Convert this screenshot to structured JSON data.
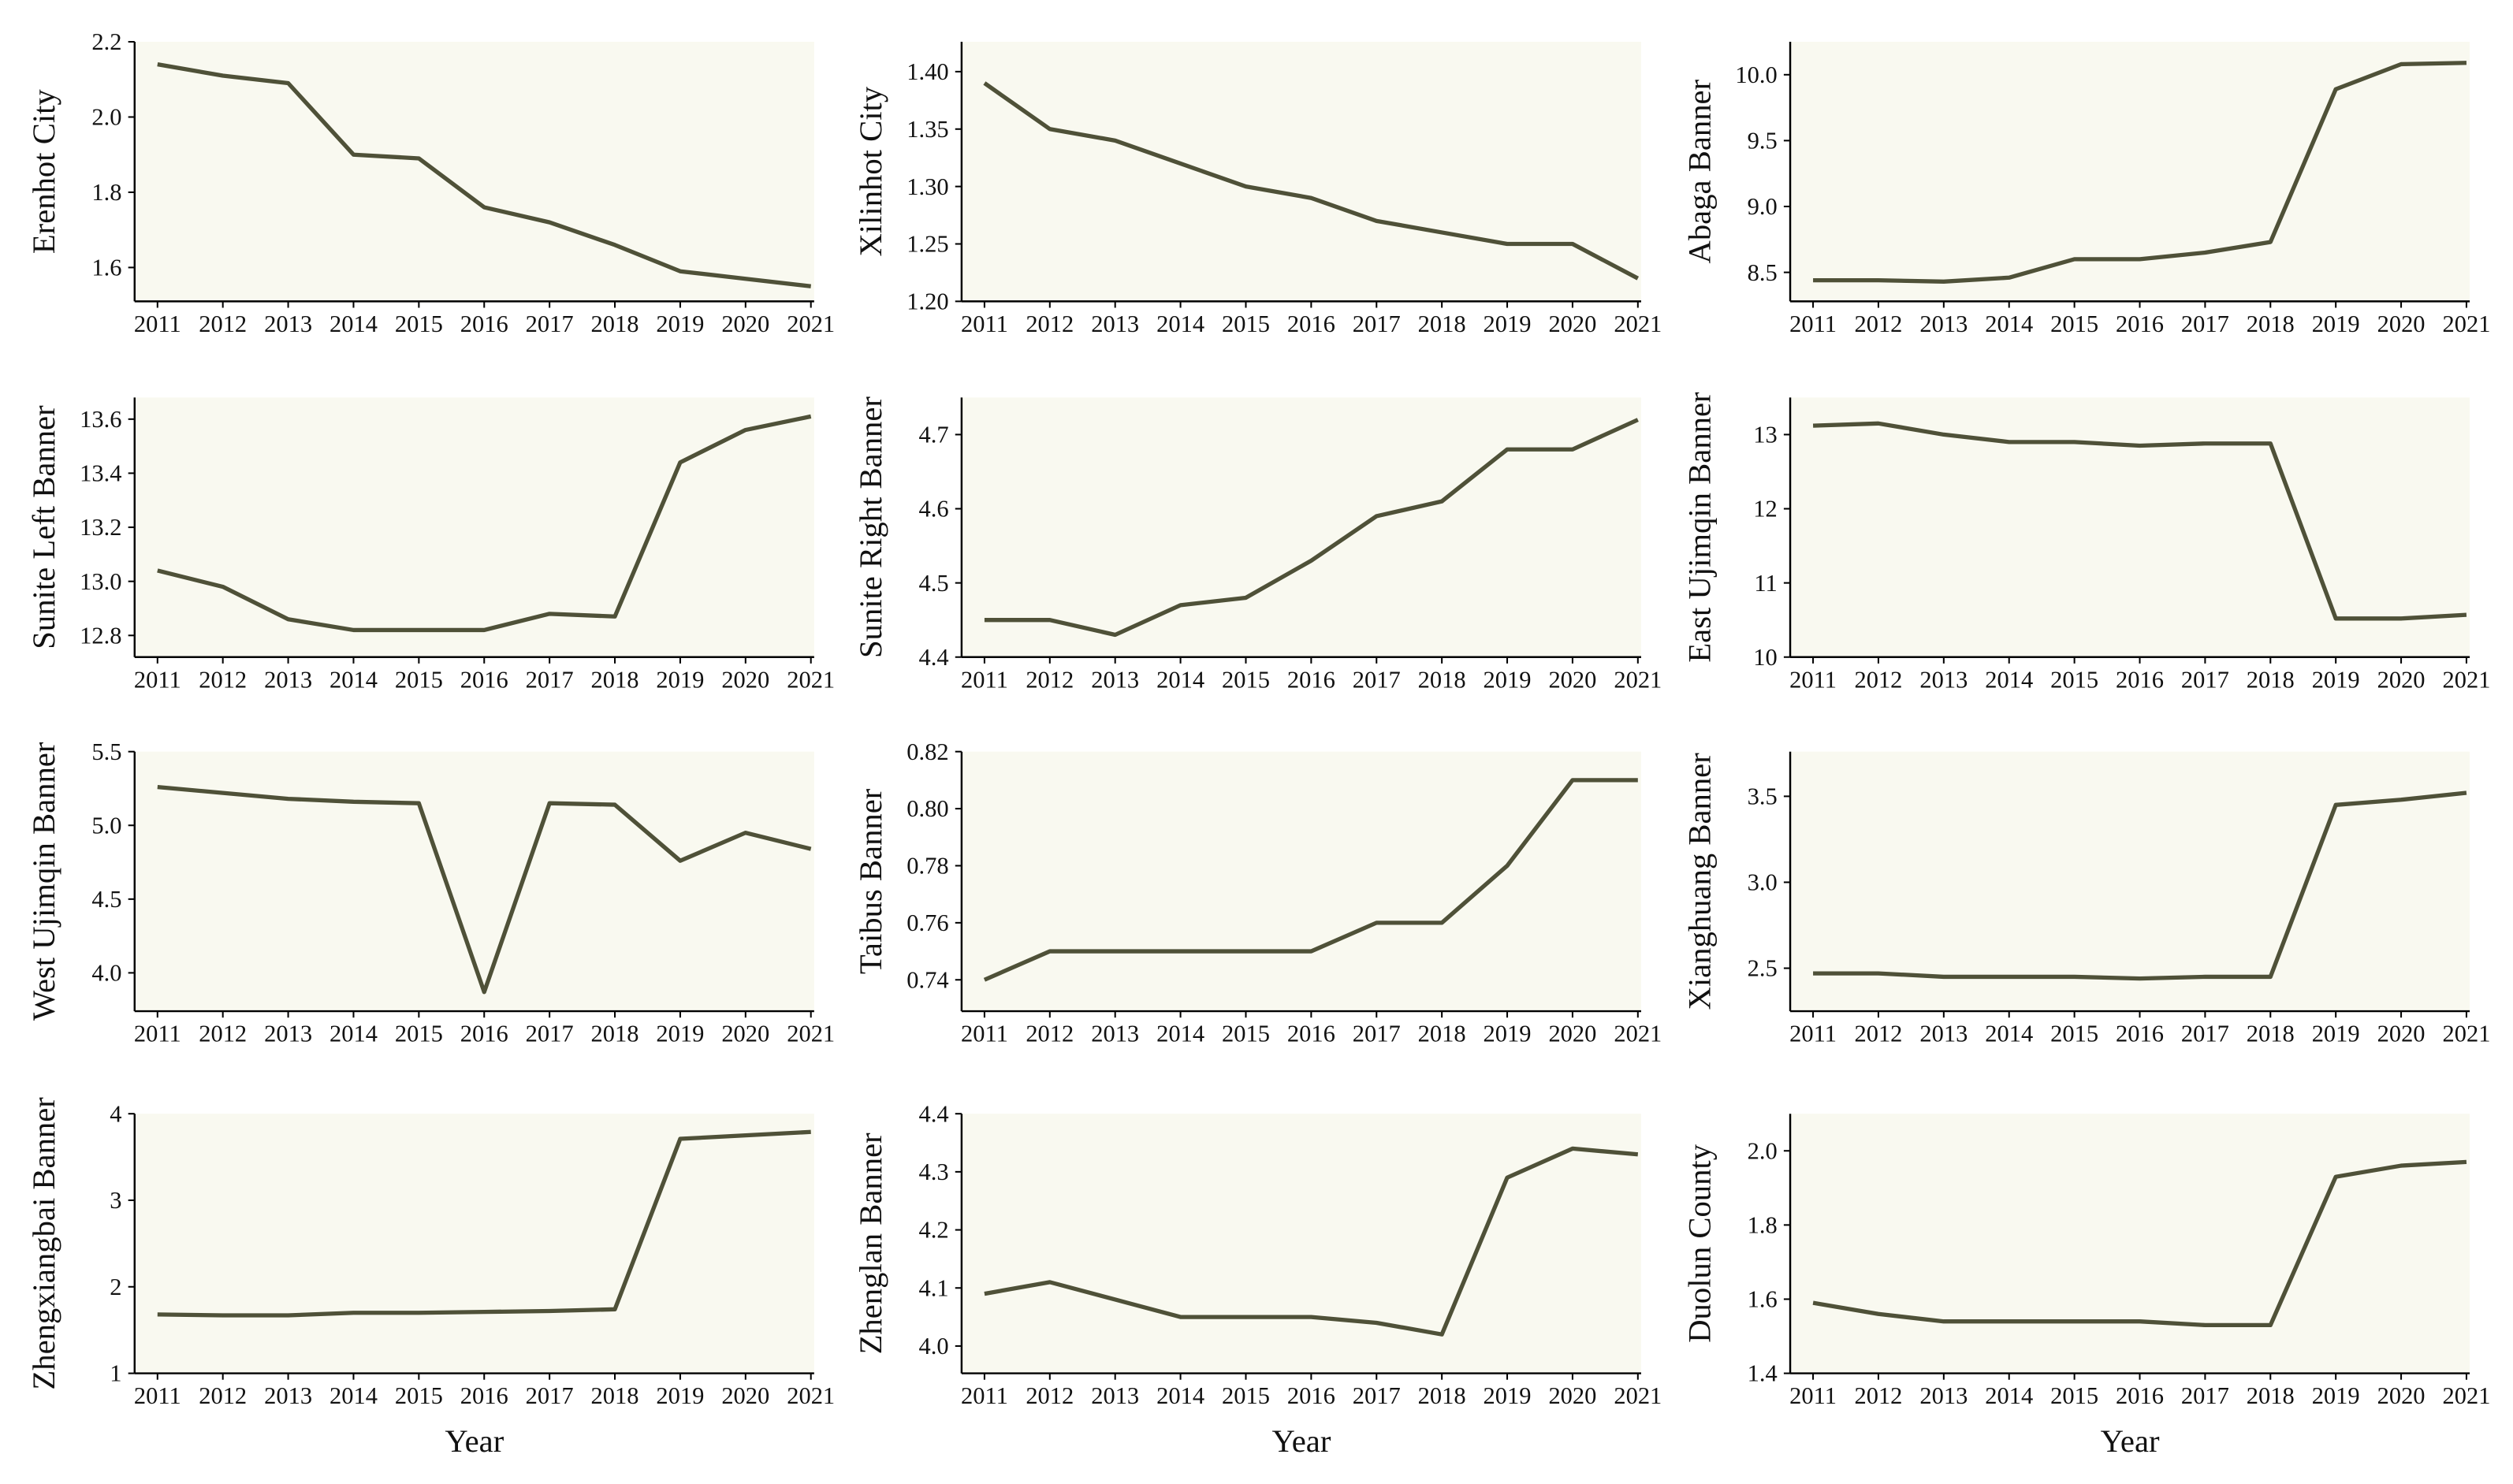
{
  "chart_data": [
    {
      "type": "line",
      "ylabel": "Erenhot City",
      "x": [
        2011,
        2012,
        2013,
        2014,
        2015,
        2016,
        2017,
        2018,
        2019,
        2020,
        2021
      ],
      "values": [
        2.14,
        2.11,
        2.09,
        1.9,
        1.89,
        1.76,
        1.72,
        1.66,
        1.59,
        1.57,
        1.55
      ],
      "color": "#4f5138",
      "background": "#f9f9f0",
      "xlim": [
        2010.65,
        2021.05
      ],
      "xticks": [
        2011,
        2012,
        2013,
        2014,
        2015,
        2016,
        2017,
        2018,
        2019,
        2020,
        2021
      ],
      "ylim": [
        1.51,
        2.2
      ],
      "yticks": [
        1.6,
        1.8,
        {
          "value": 2,
          "label": "2.0"
        },
        2.2
      ]
    },
    {
      "type": "line",
      "ylabel": "Xilinhot City",
      "x": [
        2011,
        2012,
        2013,
        2014,
        2015,
        2016,
        2017,
        2018,
        2019,
        2020,
        2021
      ],
      "values": [
        1.39,
        1.35,
        1.34,
        1.32,
        1.3,
        1.29,
        1.27,
        1.26,
        1.25,
        1.25,
        1.22
      ],
      "color": "#4f5138",
      "background": "#f9f9f0",
      "xlim": [
        2010.65,
        2021.05
      ],
      "xticks": [
        2011,
        2012,
        2013,
        2014,
        2015,
        2016,
        2017,
        2018,
        2019,
        2020,
        2021
      ],
      "ylim": [
        1.2,
        1.426
      ],
      "yticks": [
        {
          "value": 1.2,
          "label": "1.20"
        },
        1.25,
        {
          "value": 1.3,
          "label": "1.30"
        },
        1.35,
        {
          "value": 1.4,
          "label": "1.40"
        }
      ]
    },
    {
      "type": "line",
      "ylabel": "Abaga Banner",
      "x": [
        2011,
        2012,
        2013,
        2014,
        2015,
        2016,
        2017,
        2018,
        2019,
        2020,
        2021
      ],
      "values": [
        8.44,
        8.44,
        8.43,
        8.46,
        8.6,
        8.6,
        8.65,
        8.73,
        9.89,
        10.08,
        10.09
      ],
      "color": "#4f5138",
      "background": "#f9f9f0",
      "xlim": [
        2010.65,
        2021.05
      ],
      "xticks": [
        2011,
        2012,
        2013,
        2014,
        2015,
        2016,
        2017,
        2018,
        2019,
        2020,
        2021
      ],
      "ylim": [
        8.28,
        10.25
      ],
      "yticks": [
        8.5,
        {
          "value": 9,
          "label": "9.0"
        },
        9.5,
        {
          "value": 10,
          "label": "10.0"
        }
      ]
    },
    {
      "type": "line",
      "ylabel": "Sunite Left Banner",
      "x": [
        2011,
        2012,
        2013,
        2014,
        2015,
        2016,
        2017,
        2018,
        2019,
        2020,
        2021
      ],
      "values": [
        13.04,
        12.98,
        12.86,
        12.82,
        12.82,
        12.82,
        12.88,
        12.87,
        13.44,
        13.56,
        13.61
      ],
      "color": "#4f5138",
      "background": "#f9f9f0",
      "xlim": [
        2010.65,
        2021.05
      ],
      "xticks": [
        2011,
        2012,
        2013,
        2014,
        2015,
        2016,
        2017,
        2018,
        2019,
        2020,
        2021
      ],
      "ylim": [
        12.72,
        13.68
      ],
      "yticks": [
        12.8,
        {
          "value": 13,
          "label": "13.0"
        },
        13.2,
        13.4,
        13.6
      ]
    },
    {
      "type": "line",
      "ylabel": "Sunite Right Banner",
      "x": [
        2011,
        2012,
        2013,
        2014,
        2015,
        2016,
        2017,
        2018,
        2019,
        2020,
        2021
      ],
      "values": [
        4.45,
        4.45,
        4.43,
        4.47,
        4.48,
        4.53,
        4.59,
        4.61,
        4.68,
        4.68,
        4.72
      ],
      "color": "#4f5138",
      "background": "#f9f9f0",
      "xlim": [
        2010.65,
        2021.05
      ],
      "xticks": [
        2011,
        2012,
        2013,
        2014,
        2015,
        2016,
        2017,
        2018,
        2019,
        2020,
        2021
      ],
      "ylim": [
        4.4,
        4.75
      ],
      "yticks": [
        4.4,
        4.5,
        4.6,
        4.7
      ]
    },
    {
      "type": "line",
      "ylabel": "East Ujimqin Banner",
      "x": [
        2011,
        2012,
        2013,
        2014,
        2015,
        2016,
        2017,
        2018,
        2019,
        2020,
        2021
      ],
      "values": [
        13.12,
        13.15,
        13.0,
        12.9,
        12.9,
        12.85,
        12.88,
        12.88,
        10.52,
        10.52,
        10.57
      ],
      "color": "#4f5138",
      "background": "#f9f9f0",
      "xlim": [
        2010.65,
        2021.05
      ],
      "xticks": [
        2011,
        2012,
        2013,
        2014,
        2015,
        2016,
        2017,
        2018,
        2019,
        2020,
        2021
      ],
      "ylim": [
        10,
        13.5
      ],
      "yticks": [
        10,
        11,
        12,
        13
      ]
    },
    {
      "type": "line",
      "ylabel": "West Ujimqin Banner",
      "x": [
        2011,
        2012,
        2013,
        2014,
        2015,
        2016,
        2017,
        2018,
        2019,
        2020,
        2021
      ],
      "values": [
        5.26,
        5.22,
        5.18,
        5.16,
        5.15,
        3.87,
        5.15,
        5.14,
        4.76,
        4.95,
        4.84
      ],
      "color": "#4f5138",
      "background": "#f9f9f0",
      "xlim": [
        2010.65,
        2021.05
      ],
      "xticks": [
        2011,
        2012,
        2013,
        2014,
        2015,
        2016,
        2017,
        2018,
        2019,
        2020,
        2021
      ],
      "ylim": [
        3.74,
        5.5
      ],
      "yticks": [
        {
          "value": 4,
          "label": "4.0"
        },
        4.5,
        {
          "value": 5,
          "label": "5.0"
        },
        5.5
      ]
    },
    {
      "type": "line",
      "ylabel": "Taibus Banner",
      "x": [
        2011,
        2012,
        2013,
        2014,
        2015,
        2016,
        2017,
        2018,
        2019,
        2020,
        2021
      ],
      "values": [
        0.74,
        0.75,
        0.75,
        0.75,
        0.75,
        0.75,
        0.76,
        0.76,
        0.78,
        0.81,
        0.81
      ],
      "color": "#4f5138",
      "background": "#f9f9f0",
      "xlim": [
        2010.65,
        2021.05
      ],
      "xticks": [
        2011,
        2012,
        2013,
        2014,
        2015,
        2016,
        2017,
        2018,
        2019,
        2020,
        2021
      ],
      "ylim": [
        0.729,
        0.82
      ],
      "yticks": [
        0.74,
        0.76,
        0.78,
        {
          "value": 0.8,
          "label": "0.80"
        },
        0.82
      ]
    },
    {
      "type": "line",
      "ylabel": "Xianghuang Banner",
      "x": [
        2011,
        2012,
        2013,
        2014,
        2015,
        2016,
        2017,
        2018,
        2019,
        2020,
        2021
      ],
      "values": [
        2.47,
        2.47,
        2.45,
        2.45,
        2.45,
        2.44,
        2.45,
        2.45,
        3.45,
        3.48,
        3.52
      ],
      "color": "#4f5138",
      "background": "#f9f9f0",
      "xlim": [
        2010.65,
        2021.05
      ],
      "xticks": [
        2011,
        2012,
        2013,
        2014,
        2015,
        2016,
        2017,
        2018,
        2019,
        2020,
        2021
      ],
      "ylim": [
        2.25,
        3.76
      ],
      "yticks": [
        2.5,
        {
          "value": 3,
          "label": "3.0"
        },
        3.5
      ]
    },
    {
      "type": "line",
      "ylabel": "Zhengxiangbai Banner",
      "xlabel": "Year",
      "x": [
        2011,
        2012,
        2013,
        2014,
        2015,
        2016,
        2017,
        2018,
        2019,
        2020,
        2021
      ],
      "values": [
        1.68,
        1.67,
        1.67,
        1.7,
        1.7,
        1.71,
        1.72,
        1.74,
        3.71,
        3.75,
        3.79
      ],
      "color": "#4f5138",
      "background": "#f9f9f0",
      "xlim": [
        2010.65,
        2021.05
      ],
      "xticks": [
        2011,
        2012,
        2013,
        2014,
        2015,
        2016,
        2017,
        2018,
        2019,
        2020,
        2021
      ],
      "ylim": [
        1,
        4
      ],
      "yticks": [
        1,
        2,
        3,
        4
      ]
    },
    {
      "type": "line",
      "ylabel": "Zhenglan Banner",
      "xlabel": "Year",
      "x": [
        2011,
        2012,
        2013,
        2014,
        2015,
        2016,
        2017,
        2018,
        2019,
        2020,
        2021
      ],
      "values": [
        4.09,
        4.11,
        4.08,
        4.05,
        4.05,
        4.05,
        4.04,
        4.02,
        4.29,
        4.34,
        4.33
      ],
      "color": "#4f5138",
      "background": "#f9f9f0",
      "xlim": [
        2010.65,
        2021.05
      ],
      "xticks": [
        2011,
        2012,
        2013,
        2014,
        2015,
        2016,
        2017,
        2018,
        2019,
        2020,
        2021
      ],
      "ylim": [
        3.953,
        4.4
      ],
      "yticks": [
        {
          "value": 4,
          "label": "4.0"
        },
        4.1,
        4.2,
        4.3,
        4.4
      ]
    },
    {
      "type": "line",
      "ylabel": "Duolun County",
      "xlabel": "Year",
      "x": [
        2011,
        2012,
        2013,
        2014,
        2015,
        2016,
        2017,
        2018,
        2019,
        2020,
        2021
      ],
      "values": [
        1.59,
        1.56,
        1.54,
        1.54,
        1.54,
        1.54,
        1.53,
        1.53,
        1.93,
        1.96,
        1.97
      ],
      "color": "#4f5138",
      "background": "#f9f9f0",
      "xlim": [
        2010.65,
        2021.05
      ],
      "xticks": [
        2011,
        2012,
        2013,
        2014,
        2015,
        2016,
        2017,
        2018,
        2019,
        2020,
        2021
      ],
      "ylim": [
        1.4,
        2.1
      ],
      "yticks": [
        1.4,
        1.6,
        1.8,
        {
          "value": 2,
          "label": "2.0"
        }
      ]
    }
  ]
}
